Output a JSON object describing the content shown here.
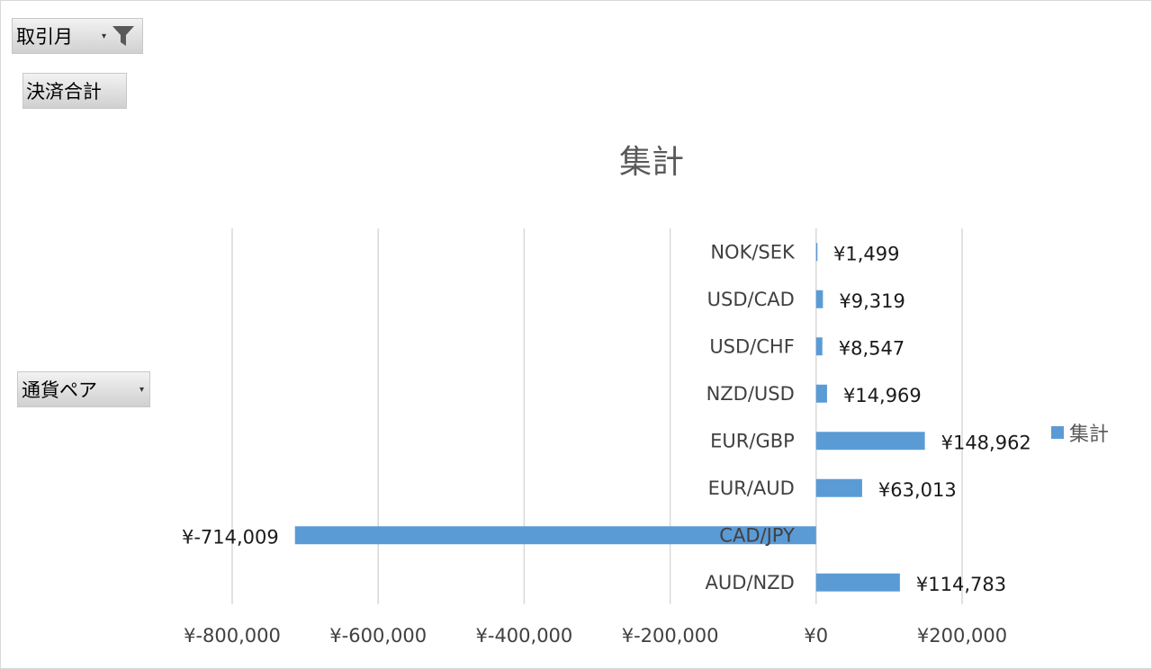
{
  "filters": {
    "report_filter_label": "取引月",
    "value_field_label": "決済合計",
    "axis_field_label": "通貨ペア"
  },
  "icons": {
    "filter": "funnel-icon",
    "dropdown": "dropdown-arrow-icon"
  },
  "colors": {
    "bar": "#5b9bd5",
    "grid": "#d9d9d9"
  },
  "chart_data": {
    "type": "bar",
    "orientation": "horizontal",
    "title": "集計",
    "categories": [
      "NOK/SEK",
      "USD/CAD",
      "USD/CHF",
      "NZD/USD",
      "EUR/GBP",
      "EUR/AUD",
      "CAD/JPY",
      "AUD/NZD"
    ],
    "series": [
      {
        "name": "集計",
        "values": [
          1499,
          9319,
          8547,
          14969,
          148962,
          63013,
          -714009,
          114783
        ],
        "labels": [
          "¥1,499",
          "¥9,319",
          "¥8,547",
          "¥14,969",
          "¥148,962",
          "¥63,013",
          "¥-714,009",
          "¥114,783"
        ]
      }
    ],
    "xlim": [
      -800000,
      200000
    ],
    "xticks": [
      -800000,
      -600000,
      -400000,
      -200000,
      0,
      200000
    ],
    "xtick_labels": [
      "¥-800,000",
      "¥-600,000",
      "¥-400,000",
      "¥-200,000",
      "¥0",
      "¥200,000"
    ],
    "grid": true,
    "legend": "right"
  }
}
